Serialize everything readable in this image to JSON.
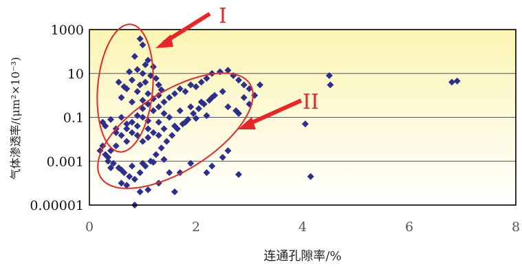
{
  "chart_data": {
    "type": "scatter",
    "title": "",
    "xlabel": "连通孔隙率/%",
    "ylabel": "气体渗透率/(μm²×10⁻³)",
    "xlim": [
      0,
      8
    ],
    "ylim": [
      1e-05,
      1000
    ],
    "yscale": "log",
    "grid": true,
    "legend": "none",
    "x_ticks": [
      "0",
      "2",
      "4",
      "6",
      "8"
    ],
    "y_ticks": [
      "1000",
      "10",
      "0.1",
      "0.001",
      "0.00001"
    ],
    "marker": "diamond",
    "colors": {
      "marker": "#2d2f8f",
      "annotation": "#e8262a",
      "plot_bg_top": "#fbf5b3",
      "plot_bg_bottom": "#ffffff",
      "grid": "#555555"
    },
    "annotations": [
      {
        "label": "I",
        "region": "high-permeability, low-porosity cluster"
      },
      {
        "label": "II",
        "region": "main low-permeability cluster"
      }
    ],
    "series": [
      {
        "points": [
          [
            0.95,
            380
          ],
          [
            1.0,
            200
          ],
          [
            0.85,
            60
          ],
          [
            1.1,
            40
          ],
          [
            1.05,
            25
          ],
          [
            0.9,
            15
          ],
          [
            1.2,
            20
          ],
          [
            0.75,
            12
          ],
          [
            1.0,
            10
          ],
          [
            1.15,
            8
          ],
          [
            0.8,
            5
          ],
          [
            1.05,
            4
          ],
          [
            0.95,
            3
          ],
          [
            1.25,
            6
          ],
          [
            0.7,
            2
          ],
          [
            1.3,
            3
          ],
          [
            0.9,
            1.5
          ],
          [
            1.1,
            1.2
          ],
          [
            0.6,
            0.8
          ],
          [
            1.0,
            0.6
          ],
          [
            0.8,
            0.5
          ],
          [
            0.65,
            2.5
          ],
          [
            1.35,
            1.8
          ],
          [
            0.55,
            4
          ],
          [
            0.3,
            0.04
          ],
          [
            0.25,
            0.06
          ],
          [
            0.4,
            0.08
          ],
          [
            0.5,
            0.03
          ],
          [
            0.6,
            0.1
          ],
          [
            0.7,
            0.05
          ],
          [
            0.8,
            0.02
          ],
          [
            0.9,
            0.04
          ],
          [
            1.0,
            0.1
          ],
          [
            1.1,
            0.07
          ],
          [
            1.2,
            0.2
          ],
          [
            1.3,
            0.3
          ],
          [
            1.4,
            0.5
          ],
          [
            1.5,
            0.8
          ],
          [
            1.6,
            1.2
          ],
          [
            1.7,
            2
          ],
          [
            1.8,
            1.5
          ],
          [
            1.9,
            3
          ],
          [
            2.0,
            2.5
          ],
          [
            2.1,
            4
          ],
          [
            2.2,
            6
          ],
          [
            2.3,
            10
          ],
          [
            2.45,
            12
          ],
          [
            2.6,
            14
          ],
          [
            2.7,
            8
          ],
          [
            2.8,
            5
          ],
          [
            2.9,
            3
          ],
          [
            3.0,
            2
          ],
          [
            3.1,
            1
          ],
          [
            3.2,
            3
          ],
          [
            2.5,
            1.5
          ],
          [
            2.3,
            0.8
          ],
          [
            2.1,
            0.5
          ],
          [
            1.9,
            0.3
          ],
          [
            1.7,
            0.2
          ],
          [
            1.5,
            0.1
          ],
          [
            1.3,
            0.06
          ],
          [
            1.1,
            0.03
          ],
          [
            0.9,
            0.015
          ],
          [
            0.7,
            0.008
          ],
          [
            0.5,
            0.005
          ],
          [
            0.4,
            0.003
          ],
          [
            0.3,
            0.002
          ],
          [
            0.35,
            0.001
          ],
          [
            0.45,
            0.0008
          ],
          [
            0.55,
            0.0005
          ],
          [
            0.65,
            0.0003
          ],
          [
            0.75,
            0.0002
          ],
          [
            0.85,
            0.00015
          ],
          [
            0.95,
            0.0003
          ],
          [
            1.05,
            0.0006
          ],
          [
            1.15,
            0.001
          ],
          [
            1.25,
            0.002
          ],
          [
            1.35,
            0.004
          ],
          [
            1.45,
            0.008
          ],
          [
            1.55,
            0.015
          ],
          [
            1.65,
            0.03
          ],
          [
            1.75,
            0.05
          ],
          [
            1.85,
            0.08
          ],
          [
            1.95,
            0.15
          ],
          [
            2.05,
            0.25
          ],
          [
            2.15,
            0.4
          ],
          [
            2.25,
            0.6
          ],
          [
            2.35,
            1
          ],
          [
            2.6,
            0.3
          ],
          [
            2.8,
            0.15
          ],
          [
            3.0,
            0.4
          ],
          [
            2.9,
            0.8
          ],
          [
            2.75,
            0.2
          ],
          [
            0.5,
            0.02
          ],
          [
            0.6,
            0.015
          ],
          [
            0.7,
            0.03
          ],
          [
            0.8,
            0.06
          ],
          [
            0.9,
            0.12
          ],
          [
            1.0,
            0.25
          ],
          [
            1.1,
            0.4
          ],
          [
            1.2,
            0.7
          ],
          [
            1.3,
            1.0
          ],
          [
            1.4,
            0.15
          ],
          [
            1.0,
            0.008
          ],
          [
            1.1,
            0.012
          ],
          [
            1.2,
            0.02
          ],
          [
            1.3,
            0.015
          ],
          [
            1.4,
            0.03
          ],
          [
            1.6,
            0.04
          ],
          [
            1.8,
            0.06
          ],
          [
            2.0,
            0.09
          ],
          [
            2.2,
            0.12
          ],
          [
            0.4,
            0.0005
          ],
          [
            0.6,
            0.0004
          ],
          [
            0.8,
            0.0006
          ],
          [
            1.0,
            0.0008
          ],
          [
            1.2,
            0.0009
          ],
          [
            1.4,
            0.0012
          ],
          [
            0.2,
            0.003
          ],
          [
            0.25,
            0.005
          ],
          [
            0.35,
            0.0015
          ],
          [
            0.6,
            0.0001
          ],
          [
            0.7,
            8e-05
          ],
          [
            0.85,
            1e-05
          ],
          [
            0.95,
            4e-05
          ],
          [
            1.1,
            5e-05
          ],
          [
            1.3,
            0.0001
          ],
          [
            1.5,
            0.0003
          ],
          [
            1.6,
            4e-05
          ],
          [
            1.7,
            0.0003
          ],
          [
            1.9,
            0.0008
          ],
          [
            2.2,
            0.0003
          ],
          [
            2.3,
            0.0006
          ],
          [
            2.5,
            0.0015
          ],
          [
            2.6,
            0.003
          ],
          [
            2.8,
            0.00025
          ],
          [
            4.05,
            0.05
          ],
          [
            4.15,
            0.0002
          ],
          [
            4.5,
            8
          ],
          [
            4.52,
            3
          ],
          [
            6.8,
            4
          ],
          [
            6.9,
            4.5
          ]
        ]
      }
    ]
  }
}
